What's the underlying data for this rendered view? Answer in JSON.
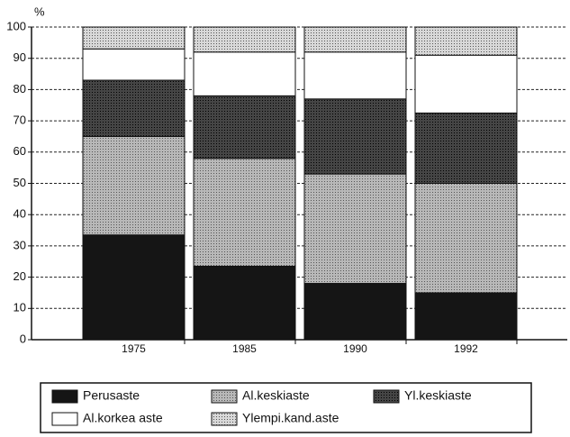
{
  "chart_data": {
    "type": "stacked_bar",
    "ylabel": "%",
    "categories": [
      "1975",
      "1985",
      "1990",
      "1992"
    ],
    "series": [
      {
        "name": "Perusaste",
        "color": "#151515",
        "values": [
          33.5,
          23.5,
          18,
          15
        ]
      },
      {
        "name": "Al.keskiaste",
        "color": "#b8b8b8",
        "values": [
          31.5,
          34.5,
          35,
          35
        ]
      },
      {
        "name": "Yl.keskiaste",
        "color": "#454545",
        "values": [
          18,
          20,
          24,
          22.5
        ]
      },
      {
        "name": "Al.korkea aste",
        "color": "#ffffff",
        "values": [
          10,
          14,
          15,
          18.5
        ]
      },
      {
        "name": "Ylempi.kand.aste",
        "color": "#d8d8d8",
        "values": [
          7,
          8,
          8,
          9
        ]
      }
    ],
    "ylim": [
      0,
      100
    ],
    "yticks": [
      0,
      10,
      20,
      30,
      40,
      50,
      60,
      70,
      80,
      90,
      100
    ],
    "grid": true
  }
}
